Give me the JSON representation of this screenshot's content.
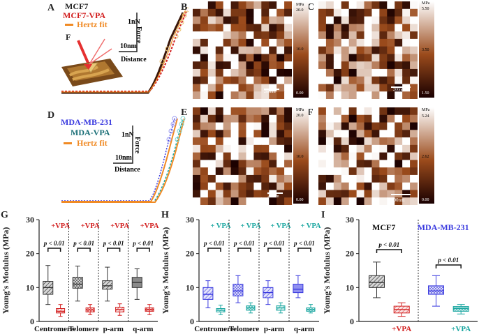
{
  "colors": {
    "mcf7": "#d21e1e",
    "mdamb": "#3a3adf",
    "vpa_teal": "#1aa6a0",
    "hertz": "#f08a24",
    "dark": "#3a1608",
    "cb_low": "#1a0000",
    "cb_mid": "#9b4b1c",
    "cb_high": "#ffffff"
  },
  "panels": {
    "A": "A",
    "B": "B",
    "C": "C",
    "D": "D",
    "E": "E",
    "F": "F",
    "G": "G",
    "H": "H",
    "I": "I"
  },
  "panelA": {
    "legend1": "MCF7",
    "legend2": "MCF7-VPA",
    "legend3": "Hertz fit",
    "scale_force": "1nN",
    "scale_dist": "10nm",
    "axis_force": "Force",
    "axis_dist": "Distance",
    "tip_label": "F"
  },
  "panelD": {
    "legend1": "MDA-MB-231",
    "legend2": "MDA-VPA",
    "legend3": "Hertz fit",
    "scale_force": "1nN",
    "scale_dist": "10nm",
    "axis_force": "Force",
    "axis_dist": "Distance"
  },
  "maps": {
    "B": {
      "unit": "MPa",
      "ticks": [
        "20.0",
        "10.0",
        "0.00"
      ],
      "scalebar": "200nm"
    },
    "C": {
      "unit": "MPa",
      "ticks": [
        "5.50",
        "3.50",
        "1.50"
      ],
      "scalebar": "200nm"
    },
    "E": {
      "unit": "MPa",
      "ticks": [
        "20.0",
        "10.0",
        "0.00"
      ],
      "scalebar": "200nm"
    },
    "F": {
      "unit": "MPa",
      "ticks": [
        "5.24",
        "2.62",
        "0.00"
      ],
      "scalebar": "200nm"
    }
  },
  "chart_data": [
    {
      "type": "box",
      "panel": "G",
      "ylabel": "Young's Modulus (MPa)",
      "ylim": [
        0,
        30
      ],
      "yticks": [
        "0",
        "10",
        "20",
        "30"
      ],
      "categories": [
        "Centromere",
        "Telomere",
        "p-arm",
        "q-arm"
      ],
      "treatment_label": "+VPA",
      "sig": "p < 0.01",
      "series": [
        {
          "name": "MCF7",
          "boxes": [
            {
              "whislo": 5,
              "q1": 8,
              "med": 10,
              "q3": 11.8,
              "whishi": 16.5
            },
            {
              "whislo": 6,
              "q1": 9.8,
              "med": 11,
              "q3": 13,
              "whishi": 16.3
            },
            {
              "whislo": 6,
              "q1": 9.5,
              "med": 10.5,
              "q3": 12,
              "whishi": 16
            },
            {
              "whislo": 6.5,
              "q1": 10,
              "med": 11.5,
              "q3": 13,
              "whishi": 15.5
            }
          ]
        },
        {
          "name": "MCF7-VPA",
          "boxes": [
            {
              "whislo": 1.5,
              "q1": 2.5,
              "med": 3,
              "q3": 3.8,
              "whishi": 5
            },
            {
              "whislo": 2,
              "q1": 2.8,
              "med": 3.4,
              "q3": 4,
              "whishi": 5
            },
            {
              "whislo": 1.8,
              "q1": 2.8,
              "med": 3.5,
              "q3": 4.2,
              "whishi": 5.2
            },
            {
              "whislo": 2,
              "q1": 3,
              "med": 3.5,
              "q3": 4,
              "whishi": 5
            }
          ]
        }
      ]
    },
    {
      "type": "box",
      "panel": "H",
      "ylabel": "Young's Modulus (MPa)",
      "ylim": [
        0,
        30
      ],
      "yticks": [
        "0",
        "10",
        "20",
        "30"
      ],
      "categories": [
        "Centromere",
        "Telomere",
        "p-arm",
        "q-arm"
      ],
      "treatment_label": "+ VPA",
      "sig": "p < 0.01",
      "series": [
        {
          "name": "MDA-MB-231",
          "boxes": [
            {
              "whislo": 4,
              "q1": 6.5,
              "med": 8,
              "q3": 10,
              "whishi": 12
            },
            {
              "whislo": 5.5,
              "q1": 7.5,
              "med": 9,
              "q3": 11,
              "whishi": 13.5
            },
            {
              "whislo": 5,
              "q1": 7,
              "med": 8.5,
              "q3": 10,
              "whishi": 12
            },
            {
              "whislo": 7,
              "q1": 8.5,
              "med": 9.5,
              "q3": 11,
              "whishi": 13.5
            }
          ]
        },
        {
          "name": "MDA-VPA",
          "boxes": [
            {
              "whislo": 2,
              "q1": 2.8,
              "med": 3.3,
              "q3": 3.8,
              "whishi": 4.8
            },
            {
              "whislo": 2.5,
              "q1": 3.3,
              "med": 4,
              "q3": 4.6,
              "whishi": 5.5
            },
            {
              "whislo": 2.5,
              "q1": 3.3,
              "med": 4,
              "q3": 4.6,
              "whishi": 5.5
            },
            {
              "whislo": 2.5,
              "q1": 3,
              "med": 3.5,
              "q3": 4,
              "whishi": 5
            }
          ]
        }
      ]
    },
    {
      "type": "box",
      "panel": "I",
      "ylabel": "Young's Modulus (MPa)",
      "ylim": [
        0,
        30
      ],
      "yticks": [
        "0",
        "10",
        "20",
        "30"
      ],
      "groups": [
        {
          "name": "MCF7",
          "treatment": "+VPA",
          "sig": "p < 0.01",
          "control": {
            "whislo": 7,
            "q1": 10,
            "med": 11.5,
            "q3": 13.5,
            "whishi": 17.5
          },
          "treated": {
            "whislo": 1.5,
            "q1": 2.5,
            "med": 3.5,
            "q3": 4.5,
            "whishi": 5.5
          }
        },
        {
          "name": "MDA-MB-231",
          "treatment": "+VPA",
          "sig": "p < 0.01",
          "control": {
            "whislo": 4.5,
            "q1": 8,
            "med": 9,
            "q3": 10.5,
            "whishi": 13.5
          },
          "treated": {
            "whislo": 2.2,
            "q1": 3,
            "med": 3.8,
            "q3": 4.4,
            "whishi": 5
          }
        }
      ]
    }
  ]
}
